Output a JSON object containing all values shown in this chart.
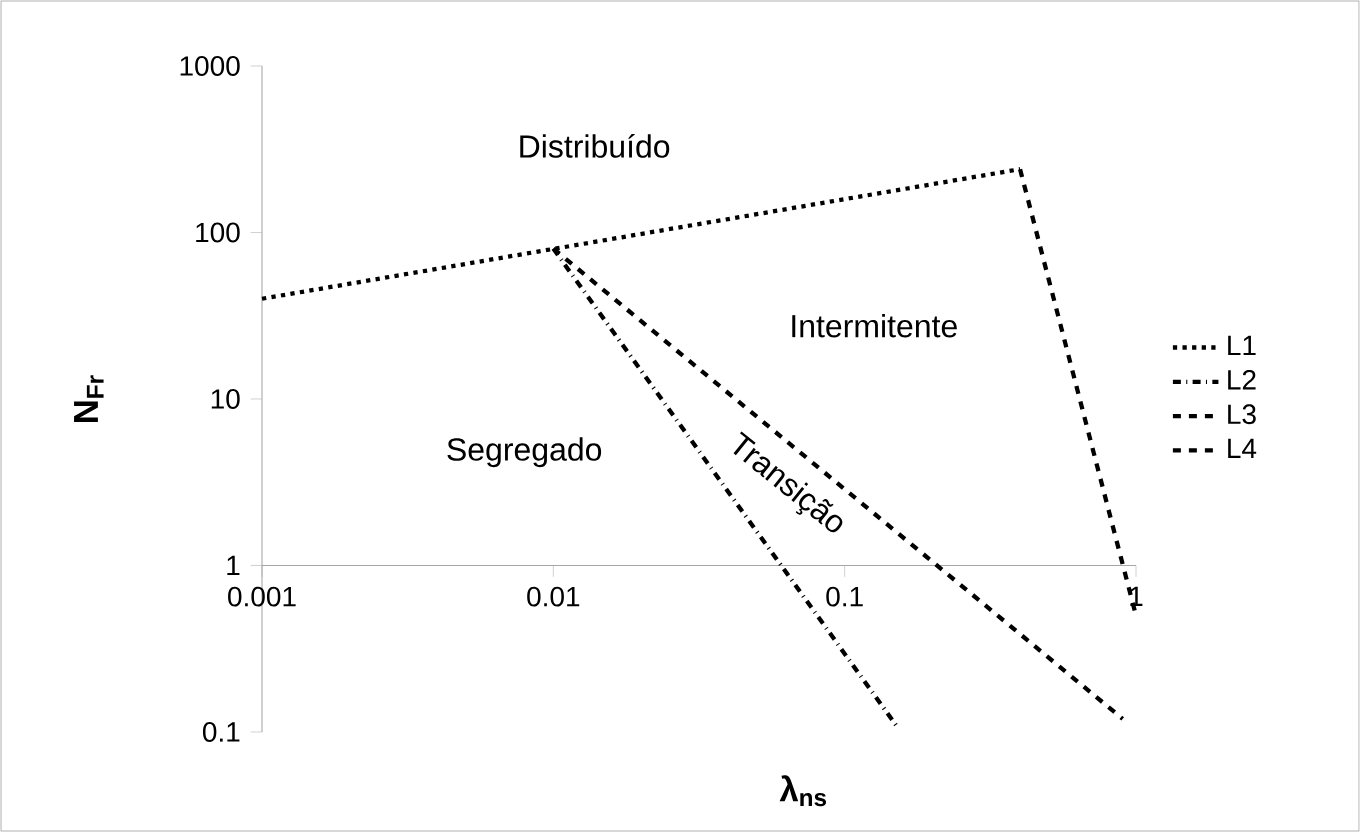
{
  "chart_data": {
    "type": "line",
    "xlabel": "λ$_{ns}$",
    "ylabel": "N$_{Fr}$",
    "log": "xy",
    "xlim": [
      0.001,
      1
    ],
    "ylim": [
      0.1,
      1000
    ],
    "xticks": [
      0.001,
      0.01,
      0.1,
      1
    ],
    "yticks": [
      0.1,
      1,
      10,
      100,
      1000
    ],
    "grid": false,
    "legend": "right",
    "marker": "none",
    "series": [
      {
        "name": "L1",
        "color": "#000000",
        "line_style": "dotted",
        "x": [
          0.001,
          0.4
        ],
        "values": [
          40,
          240
        ]
      },
      {
        "name": "L2",
        "color": "#000000",
        "line_style": "dashdot",
        "x": [
          0.01,
          0.15
        ],
        "values": [
          80,
          0.11
        ]
      },
      {
        "name": "L3",
        "color": "#000000",
        "line_style": "dashed",
        "x": [
          0.01,
          0.9
        ],
        "values": [
          80,
          0.12
        ]
      },
      {
        "name": "L4",
        "color": "#000000",
        "line_style": "dashed",
        "x": [
          0.4,
          1
        ],
        "values": [
          240,
          0.5
        ]
      }
    ],
    "annotations": [
      "Distribuído",
      "Intermitente",
      "Segregado",
      "Transição"
    ]
  }
}
